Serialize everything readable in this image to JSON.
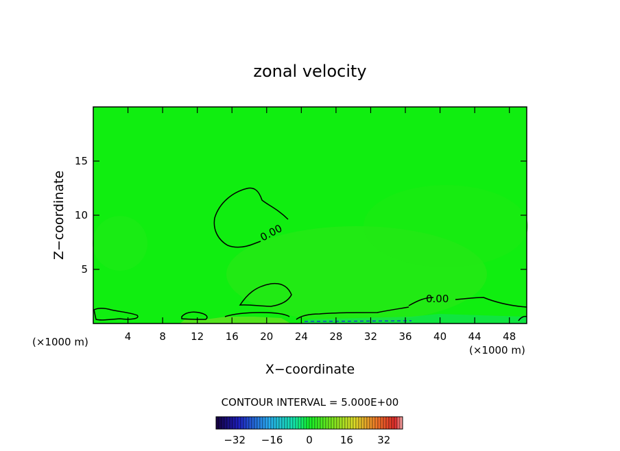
{
  "chart_data": {
    "type": "heatmap",
    "title": "zonal velocity",
    "xlabel": "X−coordinate",
    "ylabel": "Z−coordinate",
    "x_unit": "(×1000 m)",
    "xlim": [
      0,
      50
    ],
    "ylim": [
      0,
      20
    ],
    "x_ticks": [
      "4",
      "8",
      "12",
      "16",
      "20",
      "24",
      "28",
      "32",
      "36",
      "40",
      "44",
      "48"
    ],
    "y_ticks": [
      "5",
      "10",
      "15"
    ],
    "contour_labels": [
      "0.00",
      "0.00"
    ],
    "contour_interval": "CONTOUR INTERVAL = 5.000E+00",
    "colorbar": {
      "range": [
        -40,
        40
      ],
      "ticks": [
        "−32",
        "−16",
        "0",
        "16",
        "32"
      ]
    },
    "field": {
      "background_value": 0,
      "regions": [
        {
          "name": "upper-left-contour",
          "sign": "negative"
        },
        {
          "name": "lower-right-contour",
          "sign": "negative"
        },
        {
          "name": "surface-positive-patch",
          "sign": "positive"
        }
      ]
    },
    "colors": {
      "zero_green": "#10ee10",
      "positive_green": "#40e818",
      "negative_green": "#10e050",
      "contour": "#000000"
    }
  }
}
